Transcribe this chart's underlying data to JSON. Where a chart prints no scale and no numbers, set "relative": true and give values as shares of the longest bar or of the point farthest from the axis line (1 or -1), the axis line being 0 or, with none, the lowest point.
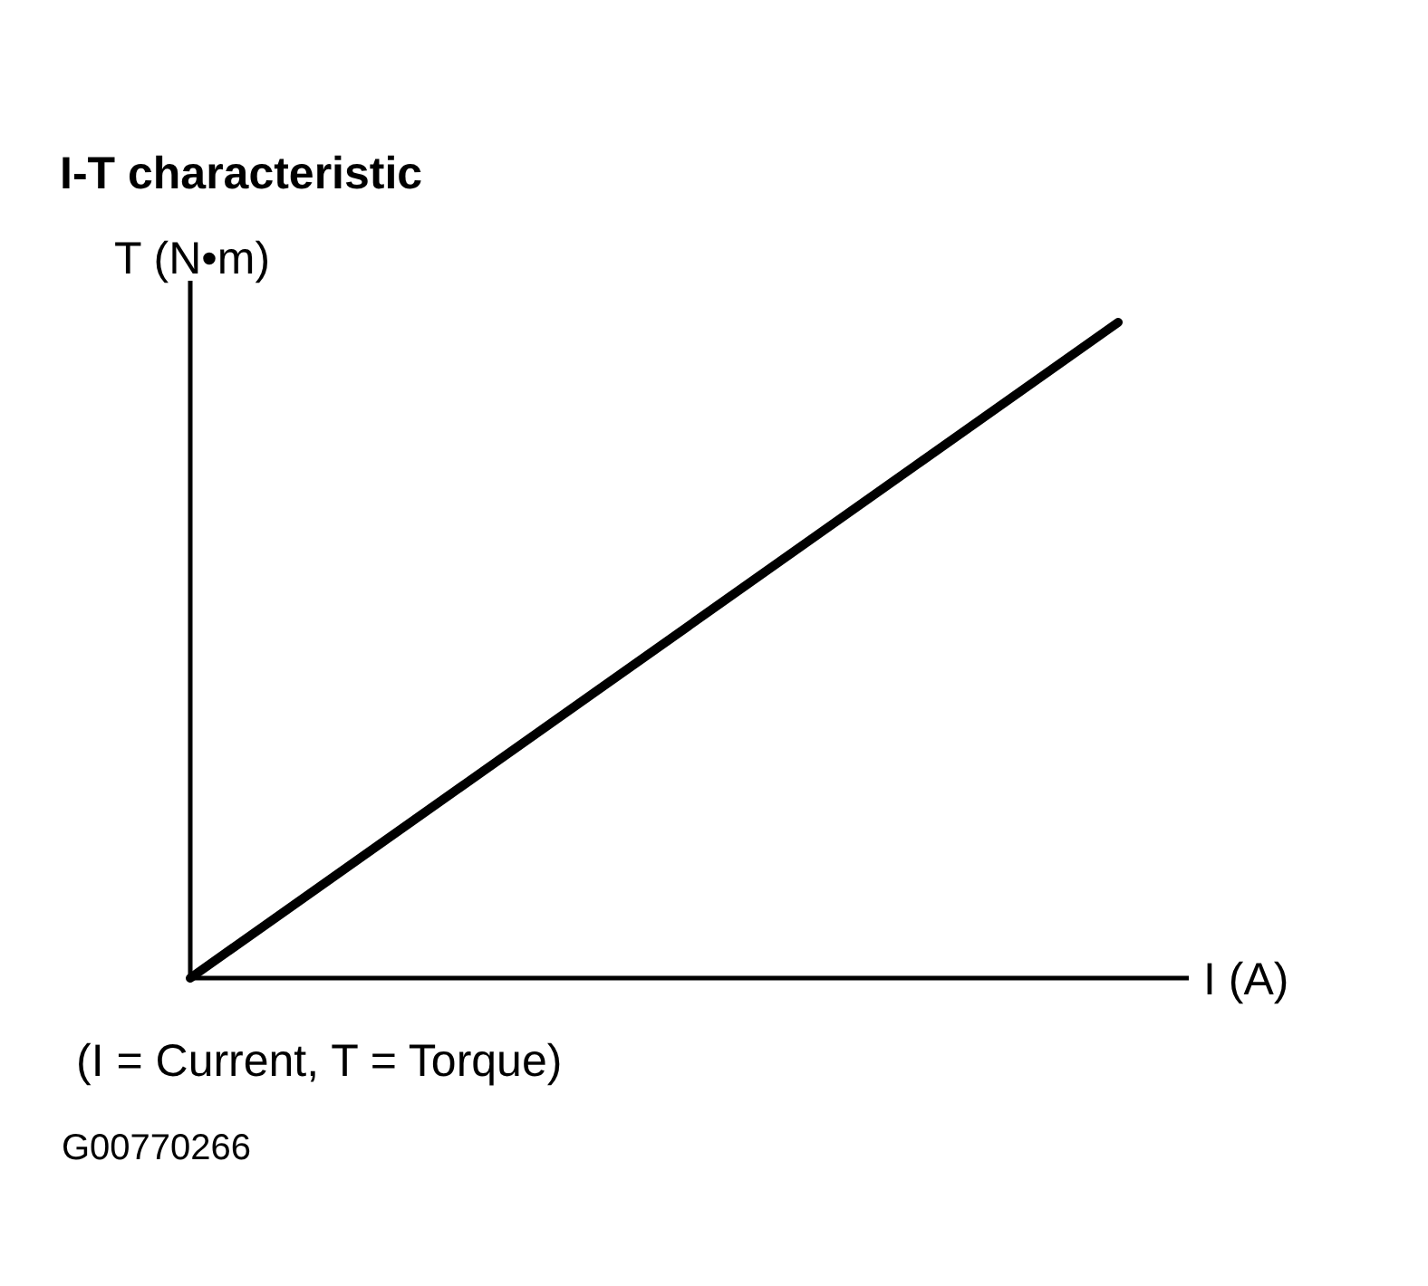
{
  "chart_data": {
    "type": "line",
    "title": "I-T characteristic",
    "ylabel": "T (N•m)",
    "xlabel": "I (A)",
    "categories": [
      null,
      null
    ],
    "series": [
      {
        "color": "#000000",
        "values": [
          0,
          1
        ]
      }
    ],
    "relative": true,
    "annotations": [
      "(I = Current, T = Torque)",
      "G00770266"
    ]
  }
}
